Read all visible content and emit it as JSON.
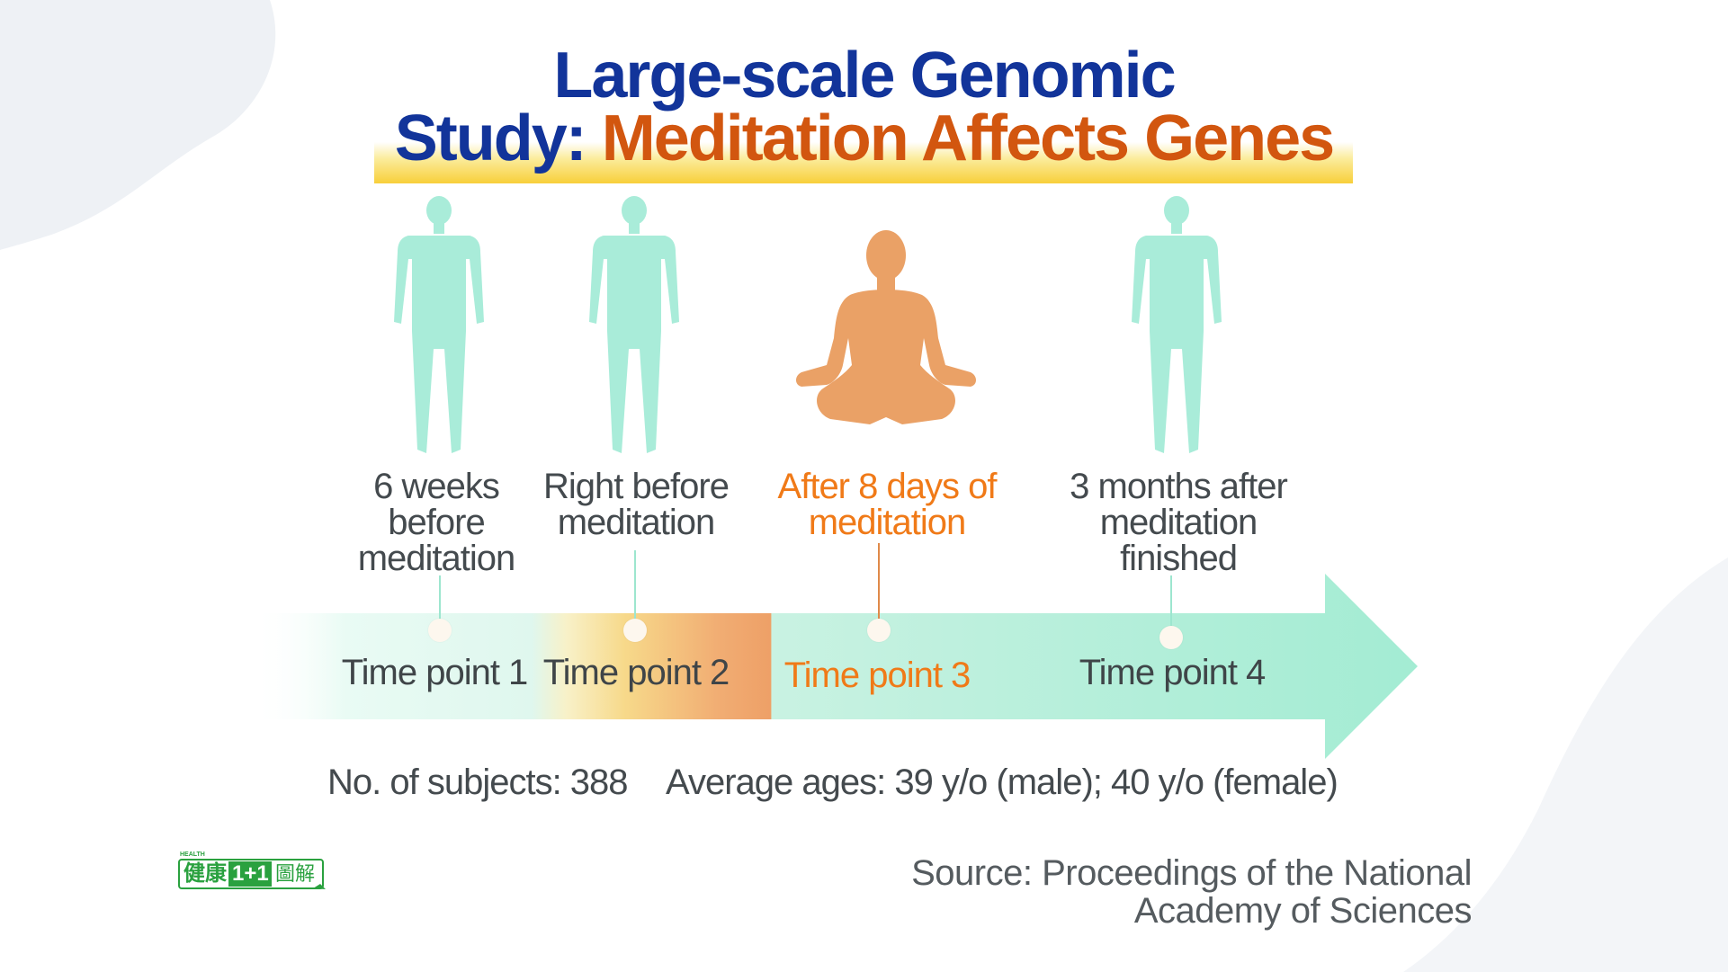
{
  "title": {
    "line1": "Large-scale Genomic",
    "line2_prefix": "Study: ",
    "line2_highlight": "Meditation Affects Genes"
  },
  "colors": {
    "title_blue": "#12349a",
    "title_orange": "#d2560f",
    "figure_mint": "#a9ecd9",
    "meditator_orange": "#eaa166",
    "highlight_orange": "#f07a18",
    "arrow_mint": "#a3ecd3"
  },
  "timeline": [
    {
      "figure": "standing-person-icon",
      "label_lines": [
        "6 weeks",
        "before",
        "meditation"
      ],
      "point": "Time point 1",
      "highlight": false
    },
    {
      "figure": "standing-person-icon",
      "label_lines": [
        "Right before",
        "meditation"
      ],
      "point": "Time point 2",
      "highlight": false
    },
    {
      "figure": "meditating-person-icon",
      "label_lines": [
        "After 8 days of",
        "meditation"
      ],
      "point": "Time point 3",
      "highlight": true
    },
    {
      "figure": "standing-person-icon",
      "label_lines": [
        "3 months after",
        "meditation",
        "finished"
      ],
      "point": "Time point 4",
      "highlight": false
    }
  ],
  "stats": {
    "subjects": "No. of subjects: 388",
    "ages": "Average ages: 39 y/o (male); 40 y/o (female)"
  },
  "source": {
    "line1": "Source: Proceedings of the National",
    "line2": "Academy of Sciences"
  },
  "logo": {
    "small_text": "HEALTH",
    "text_left": "健康",
    "text_mid": "1+1",
    "text_right": "圖解"
  }
}
